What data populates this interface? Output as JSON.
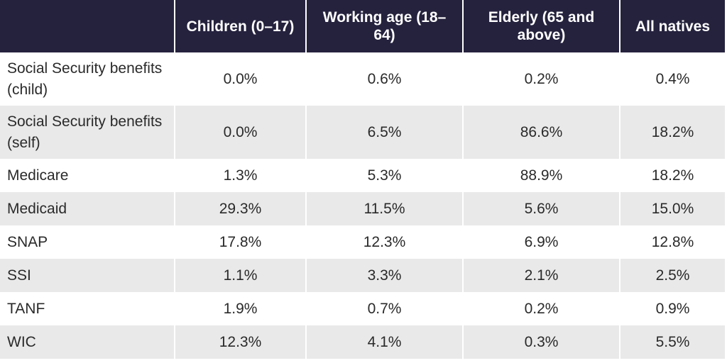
{
  "table": {
    "headers": [
      "",
      "Children (0–17)",
      "Working age (18–64)",
      "Elderly (65 and above)",
      "All natives"
    ],
    "rows": [
      {
        "label": "Social Security benefits (child)",
        "values": [
          "0.0%",
          "0.6%",
          "0.2%",
          "0.4%"
        ]
      },
      {
        "label": "Social Security benefits (self)",
        "values": [
          "0.0%",
          "6.5%",
          "86.6%",
          "18.2%"
        ]
      },
      {
        "label": "Medicare",
        "values": [
          "1.3%",
          "5.3%",
          "88.9%",
          "18.2%"
        ]
      },
      {
        "label": "Medicaid",
        "values": [
          "29.3%",
          "11.5%",
          "5.6%",
          "15.0%"
        ]
      },
      {
        "label": "SNAP",
        "values": [
          "17.8%",
          "12.3%",
          "6.9%",
          "12.8%"
        ]
      },
      {
        "label": "SSI",
        "values": [
          "1.1%",
          "3.3%",
          "2.1%",
          "2.5%"
        ]
      },
      {
        "label": "TANF",
        "values": [
          "1.9%",
          "0.7%",
          "0.2%",
          "0.9%"
        ]
      },
      {
        "label": "WIC",
        "values": [
          "12.3%",
          "4.1%",
          "0.3%",
          "5.5%"
        ]
      }
    ]
  },
  "colors": {
    "header_bg": "#25223e",
    "header_text": "#ffffff",
    "stripe": "#e9e9e9",
    "body_text": "#2a2a2a"
  }
}
